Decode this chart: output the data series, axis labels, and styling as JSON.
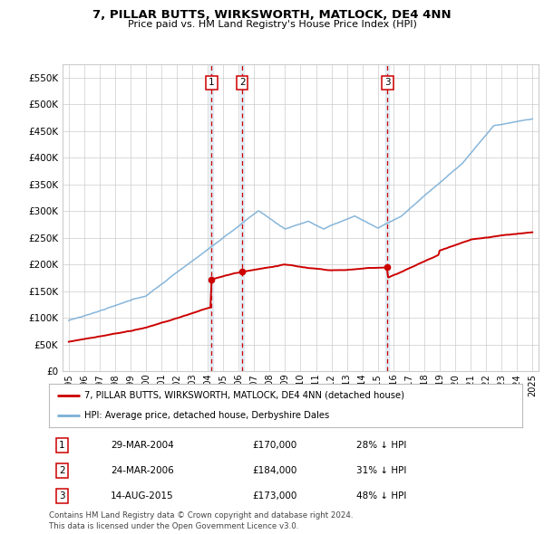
{
  "title": "7, PILLAR BUTTS, WIRKSWORTH, MATLOCK, DE4 4NN",
  "subtitle": "Price paid vs. HM Land Registry's House Price Index (HPI)",
  "ylim": [
    0,
    575000
  ],
  "yticks": [
    0,
    50000,
    100000,
    150000,
    200000,
    250000,
    300000,
    350000,
    400000,
    450000,
    500000,
    550000
  ],
  "ytick_labels": [
    "£0",
    "£50K",
    "£100K",
    "£150K",
    "£200K",
    "£250K",
    "£300K",
    "£350K",
    "£400K",
    "£450K",
    "£500K",
    "£550K"
  ],
  "transactions": [
    {
      "year": 2004.247,
      "price": 170000,
      "label": "1"
    },
    {
      "year": 2006.228,
      "price": 184000,
      "label": "2"
    },
    {
      "year": 2015.619,
      "price": 173000,
      "label": "3"
    }
  ],
  "transaction_table": [
    [
      "1",
      "29-MAR-2004",
      "£170,000",
      "28% ↓ HPI"
    ],
    [
      "2",
      "24-MAR-2006",
      "£184,000",
      "31% ↓ HPI"
    ],
    [
      "3",
      "14-AUG-2015",
      "£173,000",
      "48% ↓ HPI"
    ]
  ],
  "legend_entries": [
    "7, PILLAR BUTTS, WIRKSWORTH, MATLOCK, DE4 4NN (detached house)",
    "HPI: Average price, detached house, Derbyshire Dales"
  ],
  "footer1": "Contains HM Land Registry data © Crown copyright and database right 2024.",
  "footer2": "This data is licensed under the Open Government Licence v3.0.",
  "hpi_color": "#7aaed6",
  "price_color": "#cc0000",
  "background_color": "#ffffff",
  "grid_color": "#cccccc",
  "label_box_color": "#cc0000",
  "xlim_left": 1994.6,
  "xlim_right": 2025.4
}
